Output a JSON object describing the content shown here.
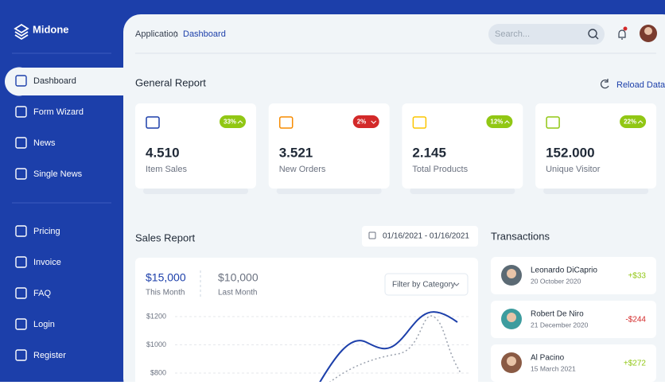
{
  "sidebar": {
    "brand": "Midone",
    "active": 0,
    "menu": [
      "Dashboard",
      "Form Wizard",
      "News",
      "Single News",
      "Pricing",
      "Invoice",
      "FAQ",
      "Login",
      "Register"
    ]
  },
  "topbar": {
    "breadcrumb": [
      "Application",
      "Dashboard"
    ],
    "search_placeholder": "Search..."
  },
  "general_report": {
    "title": "General Report",
    "reload": "Reload Data",
    "cards": [
      {
        "value": "4.510",
        "label": "Item Sales",
        "badge": "33%",
        "trend": "up",
        "icon_color": "#1c3faa"
      },
      {
        "value": "3.521",
        "label": "New Orders",
        "badge": "2%",
        "trend": "down",
        "icon_color": "#f78b00"
      },
      {
        "value": "2.145",
        "label": "Total Products",
        "badge": "12%",
        "trend": "up",
        "icon_color": "#fbc500"
      },
      {
        "value": "152.000",
        "label": "Unique Visitor",
        "badge": "22%",
        "trend": "up",
        "icon_color": "#91c714"
      }
    ]
  },
  "sales_report": {
    "title": "Sales Report",
    "date_range": "01/16/2021 - 01/16/2021",
    "this_month": {
      "value": "$15,000",
      "label": "This Month"
    },
    "last_month": {
      "value": "$10,000",
      "label": "Last Month"
    },
    "filter": "Filter by Category",
    "yticks": [
      "$1200",
      "$1000",
      "$800"
    ]
  },
  "transactions": {
    "title": "Transactions",
    "items": [
      {
        "name": "Leonardo DiCaprio",
        "date": "20 October 2020",
        "amount": "+$33"
      },
      {
        "name": "Robert De Niro",
        "date": "21 December 2020",
        "amount": "-$244"
      },
      {
        "name": "Al Pacino",
        "date": "15 March 2021",
        "amount": "+$272"
      }
    ]
  }
}
